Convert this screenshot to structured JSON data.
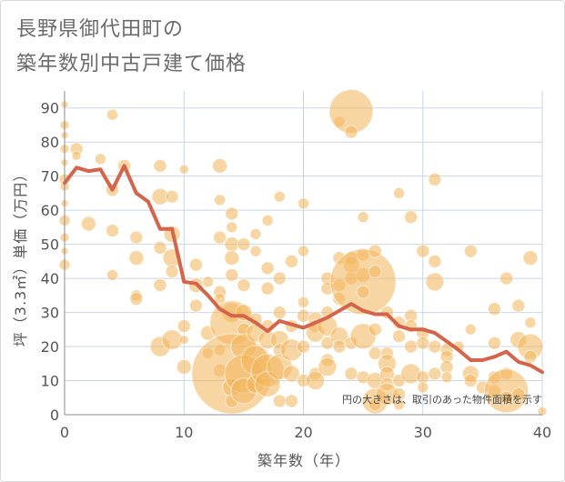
{
  "page": {
    "title_line1": "長野県御代田町の",
    "title_line2": "築年数別中古戸建て価格"
  },
  "chart_data": {
    "type": "scatter",
    "xlabel": "築年数（年）",
    "ylabel": "坪（3.3㎡）単価（万円）",
    "xlim": [
      0,
      40
    ],
    "ylim": [
      0,
      95
    ],
    "x_ticks": [
      0,
      10,
      20,
      30,
      40
    ],
    "y_ticks": [
      0,
      10,
      20,
      30,
      40,
      50,
      60,
      70,
      80,
      90
    ],
    "grid": true,
    "annotation": "円の大きさは、取引のあった物件面積を示す",
    "colors": {
      "bubble": "#f2b45a",
      "line": "#d4644a",
      "grid": "#c9d5e6",
      "axis": "#8c8c8c"
    },
    "series": [
      {
        "type": "line",
        "points": [
          [
            0,
            68
          ],
          [
            1,
            72.5
          ],
          [
            2,
            71.5
          ],
          [
            3,
            72
          ],
          [
            4,
            66
          ],
          [
            5,
            73
          ],
          [
            6,
            65
          ],
          [
            7,
            62.5
          ],
          [
            8,
            54.5
          ],
          [
            9,
            54.5
          ],
          [
            10,
            39
          ],
          [
            11,
            38.5
          ],
          [
            12,
            35
          ],
          [
            13,
            31
          ],
          [
            14,
            29
          ],
          [
            15,
            29
          ],
          [
            16,
            27
          ],
          [
            17,
            24.5
          ],
          [
            18,
            27.5
          ],
          [
            19,
            26.5
          ],
          [
            20,
            25.5
          ],
          [
            21,
            27
          ],
          [
            22,
            28.5
          ],
          [
            23,
            30.5
          ],
          [
            24,
            32.5
          ],
          [
            25,
            30.5
          ],
          [
            26,
            29.5
          ],
          [
            27,
            29.5
          ],
          [
            28,
            26
          ],
          [
            29,
            25
          ],
          [
            30,
            25
          ],
          [
            31,
            24
          ],
          [
            32,
            21.5
          ],
          [
            33,
            19
          ],
          [
            34,
            16
          ],
          [
            35,
            16
          ],
          [
            36,
            17
          ],
          [
            37,
            18.5
          ],
          [
            38,
            15.5
          ],
          [
            39,
            14.5
          ],
          [
            40,
            12.5
          ]
        ]
      },
      {
        "type": "bubble",
        "points": [
          [
            0,
            91,
            4
          ],
          [
            0,
            85,
            5
          ],
          [
            0,
            82,
            4
          ],
          [
            0,
            78,
            5
          ],
          [
            0,
            74,
            4
          ],
          [
            0,
            69,
            6
          ],
          [
            0,
            67,
            5
          ],
          [
            0,
            62,
            4
          ],
          [
            0,
            57,
            6
          ],
          [
            0,
            52,
            5
          ],
          [
            0,
            48,
            4
          ],
          [
            0,
            44,
            6
          ],
          [
            1,
            78,
            7
          ],
          [
            1,
            76,
            5
          ],
          [
            2,
            56,
            8
          ],
          [
            3,
            75,
            6
          ],
          [
            4,
            88,
            6
          ],
          [
            4,
            66,
            7
          ],
          [
            4,
            54,
            7
          ],
          [
            4,
            41,
            6
          ],
          [
            5,
            73,
            7
          ],
          [
            6,
            52,
            7
          ],
          [
            6,
            46,
            8
          ],
          [
            6,
            35,
            6
          ],
          [
            6,
            34,
            7
          ],
          [
            8,
            73,
            7
          ],
          [
            8,
            64,
            9
          ],
          [
            8,
            49,
            7
          ],
          [
            8,
            38,
            7
          ],
          [
            8,
            20,
            11
          ],
          [
            9,
            64,
            7
          ],
          [
            9,
            53,
            9
          ],
          [
            9,
            46,
            10
          ],
          [
            9,
            42,
            7
          ],
          [
            9,
            22,
            11
          ],
          [
            10,
            72,
            5
          ],
          [
            10,
            26,
            7
          ],
          [
            10,
            22,
            5
          ],
          [
            10,
            14,
            8
          ],
          [
            11,
            44,
            7
          ],
          [
            11,
            38,
            8
          ],
          [
            11,
            32,
            7
          ],
          [
            12,
            39,
            6
          ],
          [
            12,
            24,
            8
          ],
          [
            12,
            18,
            6
          ],
          [
            13,
            73,
            8
          ],
          [
            13,
            63,
            6
          ],
          [
            13,
            52,
            7
          ],
          [
            13,
            36,
            7
          ],
          [
            13,
            34,
            6
          ],
          [
            13,
            19,
            6
          ],
          [
            13,
            13,
            7
          ],
          [
            14,
            59,
            7
          ],
          [
            14,
            55,
            6
          ],
          [
            14,
            50,
            8
          ],
          [
            14,
            46,
            8
          ],
          [
            14,
            41,
            7
          ],
          [
            14,
            30,
            11
          ],
          [
            14,
            27,
            24
          ],
          [
            14,
            12,
            44
          ],
          [
            14,
            8,
            10
          ],
          [
            14,
            4,
            7
          ],
          [
            15,
            50,
            7
          ],
          [
            15,
            38,
            7
          ],
          [
            15,
            30,
            9
          ],
          [
            15,
            25,
            7
          ],
          [
            15,
            20,
            14
          ],
          [
            15,
            12,
            21
          ],
          [
            15,
            7,
            14
          ],
          [
            16,
            53,
            6
          ],
          [
            16,
            48,
            6
          ],
          [
            16,
            28,
            7
          ],
          [
            16,
            24,
            10
          ],
          [
            16,
            16,
            16
          ],
          [
            16,
            9,
            10
          ],
          [
            17,
            57,
            6
          ],
          [
            17,
            43,
            7
          ],
          [
            17,
            37,
            7
          ],
          [
            17,
            26,
            7
          ],
          [
            17,
            22,
            10
          ],
          [
            17,
            13,
            18
          ],
          [
            17,
            9,
            14
          ],
          [
            18,
            64,
            6
          ],
          [
            18,
            40,
            7
          ],
          [
            18,
            30,
            7
          ],
          [
            18,
            22,
            10
          ],
          [
            18,
            19,
            7
          ],
          [
            18,
            14,
            14
          ],
          [
            18,
            4,
            7
          ],
          [
            19,
            45,
            7
          ],
          [
            19,
            26,
            7
          ],
          [
            19,
            19,
            12
          ],
          [
            19,
            12,
            9
          ],
          [
            19,
            4,
            7
          ],
          [
            20,
            62,
            6
          ],
          [
            20,
            48,
            6
          ],
          [
            20,
            33,
            6
          ],
          [
            20,
            29,
            7
          ],
          [
            20,
            20,
            7
          ],
          [
            20,
            10,
            7
          ],
          [
            21,
            28,
            8
          ],
          [
            21,
            26,
            7
          ],
          [
            21,
            24,
            10
          ],
          [
            21,
            12,
            7
          ],
          [
            21,
            10,
            10
          ],
          [
            22,
            40,
            7
          ],
          [
            22,
            37,
            7
          ],
          [
            22,
            30,
            7
          ],
          [
            22,
            26,
            11
          ],
          [
            22,
            21,
            7
          ],
          [
            22,
            16,
            7
          ],
          [
            22,
            14,
            10
          ],
          [
            23,
            86,
            6
          ],
          [
            23,
            46,
            7
          ],
          [
            23,
            38,
            7
          ],
          [
            23,
            34,
            7
          ],
          [
            23,
            23,
            10
          ],
          [
            23,
            20,
            7
          ],
          [
            24,
            89,
            24
          ],
          [
            24,
            83,
            7
          ],
          [
            24,
            46,
            7
          ],
          [
            24,
            44,
            9
          ],
          [
            24,
            40,
            7
          ],
          [
            24,
            21,
            7
          ],
          [
            24,
            12,
            7
          ],
          [
            25,
            58,
            6
          ],
          [
            25,
            47,
            7
          ],
          [
            25,
            41,
            8
          ],
          [
            25,
            39,
            36
          ],
          [
            25,
            36,
            7
          ],
          [
            25,
            23,
            14
          ],
          [
            25,
            11,
            7
          ],
          [
            26,
            48,
            7
          ],
          [
            26,
            42,
            7
          ],
          [
            26,
            25,
            7
          ],
          [
            26,
            18,
            7
          ],
          [
            26,
            10,
            9
          ],
          [
            26,
            4,
            14
          ],
          [
            26,
            3,
            7
          ],
          [
            27,
            30,
            7
          ],
          [
            27,
            18,
            7
          ],
          [
            27,
            15,
            10
          ],
          [
            27,
            12,
            8
          ],
          [
            27,
            9,
            7
          ],
          [
            27,
            6,
            12
          ],
          [
            28,
            65,
            6
          ],
          [
            28,
            27,
            7
          ],
          [
            28,
            23,
            7
          ],
          [
            28,
            10,
            7
          ],
          [
            28,
            6,
            7
          ],
          [
            28,
            3,
            6
          ],
          [
            29,
            58,
            7
          ],
          [
            29,
            29,
            7
          ],
          [
            29,
            26,
            7
          ],
          [
            29,
            20,
            7
          ],
          [
            29,
            12,
            11
          ],
          [
            30,
            48,
            7
          ],
          [
            30,
            24,
            7
          ],
          [
            30,
            21,
            7
          ],
          [
            30,
            11,
            7
          ],
          [
            30,
            8,
            6
          ],
          [
            31,
            69,
            7
          ],
          [
            31,
            45,
            7
          ],
          [
            31,
            39,
            10
          ],
          [
            31,
            20,
            7
          ],
          [
            31,
            12,
            7
          ],
          [
            32,
            19,
            7
          ],
          [
            32,
            17,
            7
          ],
          [
            32,
            14,
            7
          ],
          [
            32,
            11,
            6
          ],
          [
            33,
            20,
            6
          ],
          [
            34,
            48,
            7
          ],
          [
            34,
            25,
            6
          ],
          [
            34,
            12,
            9
          ],
          [
            34,
            10,
            7
          ],
          [
            35,
            8,
            7
          ],
          [
            36,
            31,
            7
          ],
          [
            36,
            21,
            7
          ],
          [
            36,
            11,
            7
          ],
          [
            36,
            7,
            7
          ],
          [
            37,
            40,
            7
          ],
          [
            37,
            12,
            7
          ],
          [
            37,
            7,
            24
          ],
          [
            37,
            5,
            7
          ],
          [
            38,
            32,
            7
          ],
          [
            38,
            22,
            9
          ],
          [
            38,
            6,
            7
          ],
          [
            39,
            46,
            8
          ],
          [
            39,
            27,
            6
          ],
          [
            39,
            20,
            14
          ],
          [
            39,
            17,
            7
          ],
          [
            40,
            1,
            5
          ]
        ]
      }
    ]
  }
}
